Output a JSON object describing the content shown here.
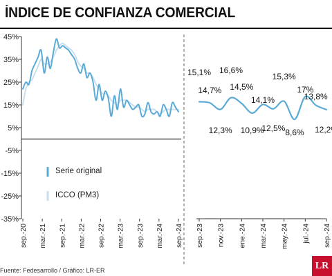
{
  "title": "ÍNDICE DE CONFIANZA COMERCIAL",
  "source": "Fuente: Fedesarrollo / Gráfico: LR-ER",
  "logo_text": "LR",
  "colors": {
    "series_original": "#5aaad6",
    "series_pm3": "#c7dff0",
    "zero_line": "#222222",
    "divider": "#666666"
  },
  "chart_data": [
    {
      "type": "line",
      "ylim": [
        -35,
        45
      ],
      "y_ticks": [
        "45%",
        "35%",
        "25%",
        "15%",
        "5%",
        "-5%",
        "-15%",
        "-25%",
        "-35%"
      ],
      "x_ticks": [
        "sep.-20",
        "mar.-21",
        "sep.-21",
        "mar.-22",
        "sep.-22",
        "mar.-23",
        "sep.-23",
        "mar.-24",
        "sep.-24"
      ],
      "legend_position": "lower-left",
      "series": [
        {
          "name": "Serie original",
          "values": [
            22,
            25,
            24,
            30,
            33,
            36,
            39,
            29,
            36,
            31,
            38,
            44,
            40,
            41,
            40,
            39,
            37,
            35,
            31,
            29,
            33,
            27,
            29,
            25,
            17,
            24,
            17,
            21,
            18,
            10,
            19,
            13,
            22,
            14,
            17,
            15,
            13,
            14,
            15,
            10,
            11,
            16,
            12,
            11,
            12,
            10,
            15,
            13,
            10,
            16,
            14,
            12
          ]
        },
        {
          "name": "ICCO (PM3)",
          "values": [
            15,
            22,
            25,
            26,
            29,
            32,
            35,
            33,
            33,
            34,
            36,
            39,
            41,
            42,
            41,
            40,
            39,
            37,
            34,
            32,
            31,
            29,
            29,
            27,
            24,
            22,
            20,
            20,
            19,
            17,
            16,
            15,
            17,
            17,
            17,
            16,
            15,
            14,
            14,
            13,
            12,
            13,
            13,
            13,
            12,
            11,
            12,
            13,
            13,
            13,
            13,
            13
          ]
        }
      ]
    },
    {
      "type": "line",
      "x_ticks": [
        "sep.-23",
        "nov.-23",
        "ene.-24",
        "mar.-24",
        "may.-24",
        "jul.-24",
        "sep.-24"
      ],
      "series": [
        {
          "name": "ICCO (PM3)",
          "values": [
            15.1,
            14.7,
            12.3,
            16.6,
            14.5,
            10.9,
            14.1,
            12.5,
            15.3,
            8.6,
            17.0,
            13.8,
            12.2
          ],
          "labels": [
            "15,1%",
            "14,7%",
            "12,3%",
            "16,6%",
            "14,5%",
            "10,9%",
            "14,1%",
            "12,5%",
            "15,3%",
            "8,6%",
            "17%",
            "13,8%",
            "12,2%"
          ]
        }
      ]
    }
  ]
}
